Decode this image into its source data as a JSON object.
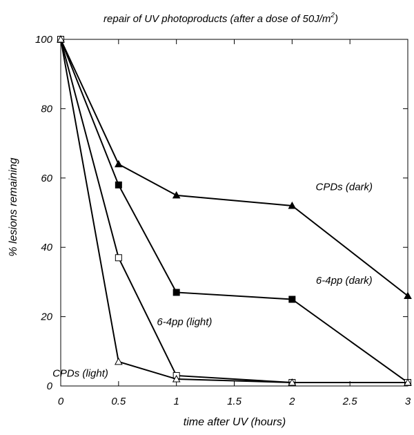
{
  "chart_data": {
    "type": "line",
    "title": "repair of UV photoproducts (after a dose of 50J/m",
    "title_superscript": "2",
    "title_close": ")",
    "xlabel": "time after UV (hours)",
    "ylabel": "% lesions remaining",
    "xlim": [
      0,
      3
    ],
    "ylim": [
      0,
      100
    ],
    "x_ticks": [
      0,
      0.5,
      1,
      1.5,
      2,
      2.5,
      3
    ],
    "x_tick_labels": [
      "0",
      "0.5",
      "1",
      "1.5",
      "2",
      "2.5",
      "3"
    ],
    "y_ticks": [
      0,
      20,
      40,
      60,
      80,
      100
    ],
    "y_tick_labels": [
      "0",
      "20",
      "40",
      "60",
      "80",
      "100"
    ],
    "grid": false,
    "legend": "none",
    "series": [
      {
        "name": "CPDs (dark)",
        "marker": "filled-triangle",
        "x": [
          0,
          0.5,
          1,
          2,
          3
        ],
        "y": [
          100,
          64,
          55,
          52,
          26
        ]
      },
      {
        "name": "6-4pp (dark)",
        "marker": "filled-square",
        "x": [
          0,
          0.5,
          1,
          2,
          3
        ],
        "y": [
          100,
          58,
          27,
          25,
          1
        ]
      },
      {
        "name": "6-4pp (light)",
        "marker": "open-square",
        "x": [
          0,
          0.5,
          1,
          2,
          3
        ],
        "y": [
          100,
          37,
          3,
          1,
          1
        ]
      },
      {
        "name": "CPDs (light)",
        "marker": "open-triangle",
        "x": [
          0,
          0.5,
          1,
          2,
          3
        ],
        "y": [
          100,
          7,
          2,
          1,
          1
        ]
      }
    ],
    "annotations": [
      {
        "text": "CPDs (dark)",
        "x": 2.45,
        "y": 56.5
      },
      {
        "text": "6-4pp (dark)",
        "x": 2.45,
        "y": 29.5
      },
      {
        "text": "6-4pp (light)",
        "x": 1.07,
        "y": 17.5
      },
      {
        "text": "CPDs (light)",
        "x": 0.17,
        "y": 2.7
      }
    ]
  }
}
